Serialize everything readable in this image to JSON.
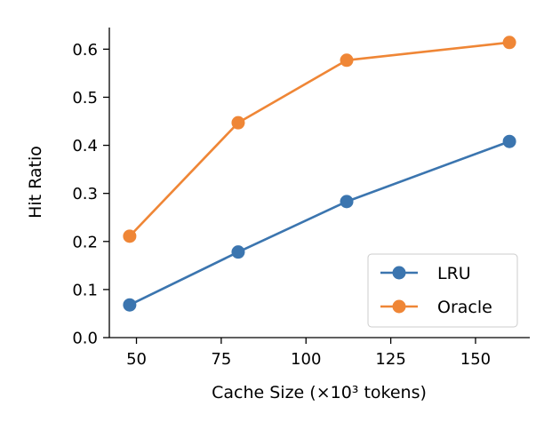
{
  "chart_data": {
    "type": "line",
    "title": "",
    "xlabel": "Cache Size (×10³ tokens)",
    "ylabel": "Hit Ratio",
    "x": [
      48,
      80,
      112,
      160
    ],
    "xlim": [
      42,
      166
    ],
    "ylim": [
      0,
      0.645
    ],
    "xticks": [
      50,
      75,
      100,
      125,
      150
    ],
    "yticks": [
      0.0,
      0.1,
      0.2,
      0.3,
      0.4,
      0.5,
      0.6
    ],
    "grid": false,
    "legend_position": "bottom-right",
    "series": [
      {
        "name": "LRU",
        "color": "#3b75af",
        "values": [
          0.068,
          0.178,
          0.283,
          0.408
        ]
      },
      {
        "name": "Oracle",
        "color": "#ef8636",
        "values": [
          0.211,
          0.447,
          0.577,
          0.614
        ]
      }
    ]
  }
}
